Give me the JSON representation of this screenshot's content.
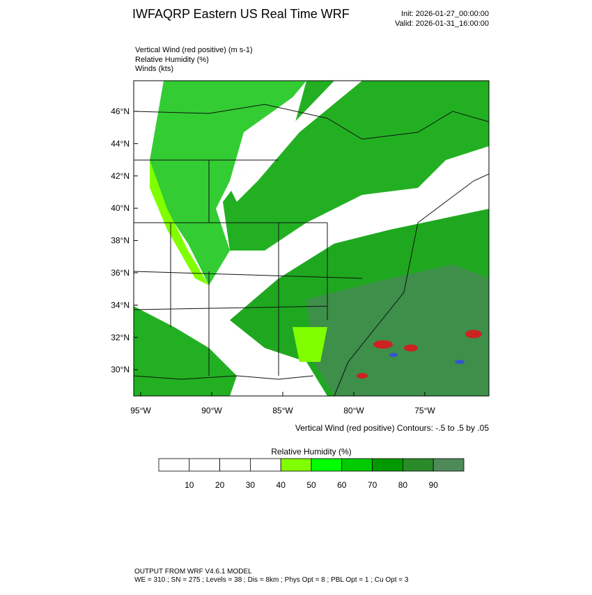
{
  "header": {
    "title": "IWFAQRP Eastern US Real Time WRF",
    "init": "Init: 2026-01-27_00:00:00",
    "valid": "Valid: 2026-01-31_16:00:00"
  },
  "fields": [
    "Vertical Wind (red positive)   (m s-1)",
    "Relative Humidity   (%)",
    "Winds   (kts)"
  ],
  "map": {
    "lat_labels": [
      "46°N",
      "44°N",
      "42°N",
      "40°N",
      "38°N",
      "36°N",
      "34°N",
      "32°N",
      "30°N"
    ],
    "lon_labels": [
      "95°W",
      "90°W",
      "85°W",
      "80°W",
      "75°W"
    ],
    "contour_note": "Vertical Wind (red positive) Contours: -.5 to .5 by .05"
  },
  "colorbar": {
    "title": "Relative Humidity  (%)",
    "colors": [
      "#ffffff",
      "#ffffff",
      "#ffffff",
      "#ffffff",
      "#80ff00",
      "#00ff00",
      "#00cc00",
      "#009900",
      "#2a8a2a",
      "#4f8a5a"
    ],
    "labels": [
      10,
      20,
      30,
      40,
      50,
      60,
      70,
      80,
      90
    ]
  },
  "footer": {
    "line1": "OUTPUT FROM WRF V4.6.1 MODEL",
    "line2": "WE = 310 ; SN = 275 ; Levels = 38 ; Dis = 8km ; Phys Opt = 8 ; PBL Opt = 1 ; Cu Opt = 3"
  }
}
